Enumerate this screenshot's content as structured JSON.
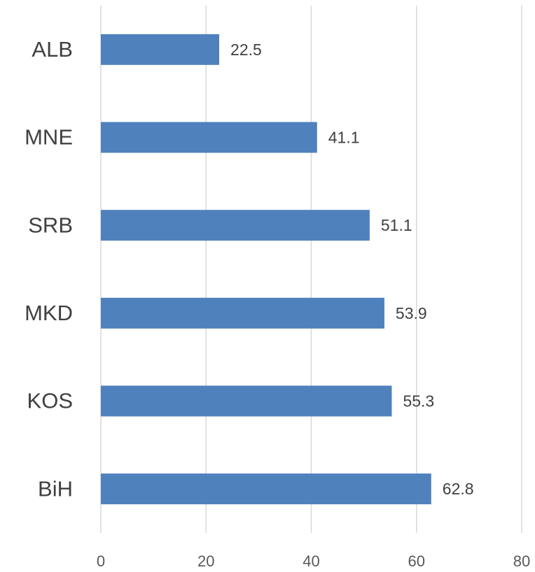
{
  "chart_data": {
    "type": "bar",
    "orientation": "horizontal",
    "categories": [
      "ALB",
      "MNE",
      "SRB",
      "MKD",
      "KOS",
      "BiH"
    ],
    "values": [
      22.5,
      41.1,
      51.1,
      53.9,
      55.3,
      62.8
    ],
    "color": "#4f81bd",
    "xlim": [
      0,
      80
    ],
    "xticks": [
      0,
      20,
      40,
      60,
      80
    ],
    "grid": true
  }
}
